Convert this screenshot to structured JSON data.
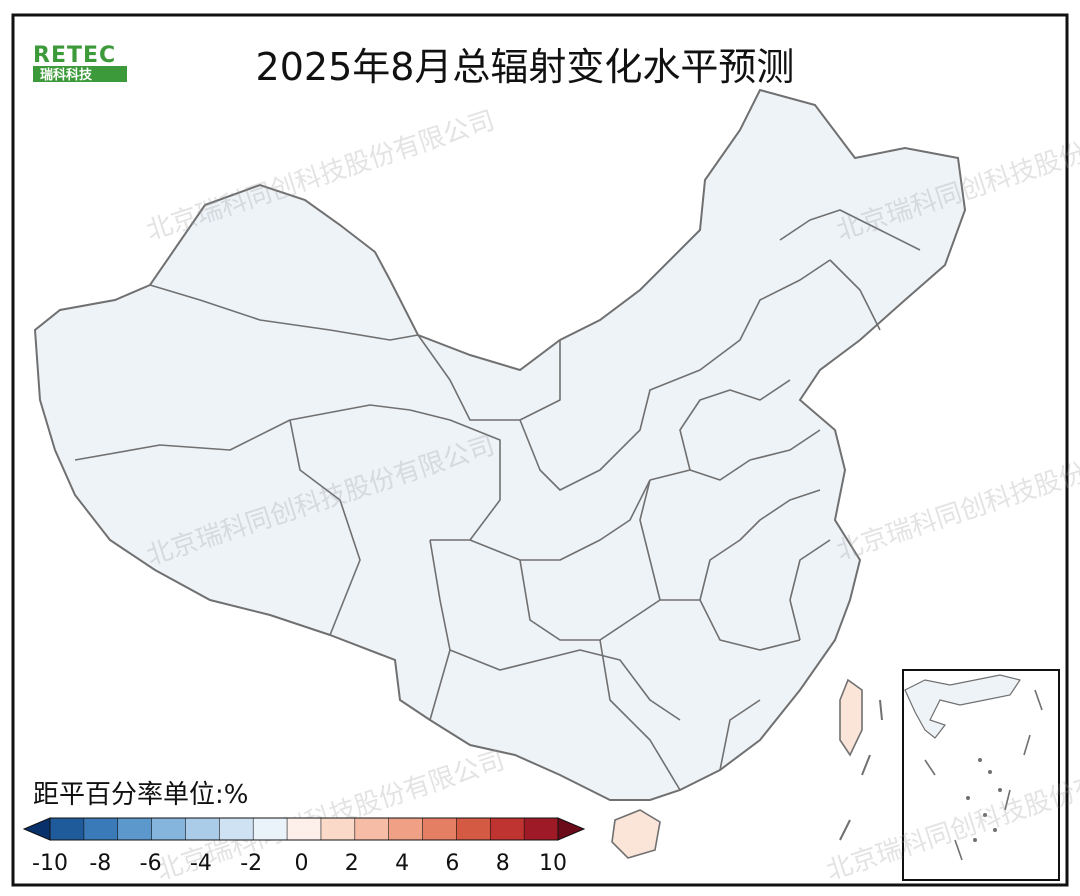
{
  "title": "2025年8月总辐射变化水平预测",
  "logo": {
    "top": "RETEC",
    "bottom": "瑞科科技"
  },
  "watermark": "北京瑞科同创科技股份有限公司",
  "legend": {
    "title": "距平百分率单位:%",
    "ticks": [
      "-10",
      "-8",
      "-6",
      "-4",
      "-2",
      "0",
      "2",
      "4",
      "6",
      "8",
      "10"
    ],
    "colors": [
      "#08306b",
      "#1f5a9a",
      "#3a7ab8",
      "#5d98cc",
      "#85b4dc",
      "#aacce8",
      "#cfe2f3",
      "#ebf3fa",
      "#fdf0ea",
      "#fbd9c9",
      "#f6bca6",
      "#efa085",
      "#e57f63",
      "#d55a44",
      "#bf3431",
      "#9e1a26",
      "#6b0a19"
    ]
  },
  "map_colors": {
    "base": "#eef3f8",
    "light_blue": "#d6e6f3",
    "blue": "#b8d4ec",
    "mid_blue": "#8fbce0",
    "dark_blue": "#6fa6d6",
    "light_red": "#fbe4d8",
    "red": "#f6c6b1",
    "dark_red": "#ef9f82",
    "border": "#707070"
  }
}
